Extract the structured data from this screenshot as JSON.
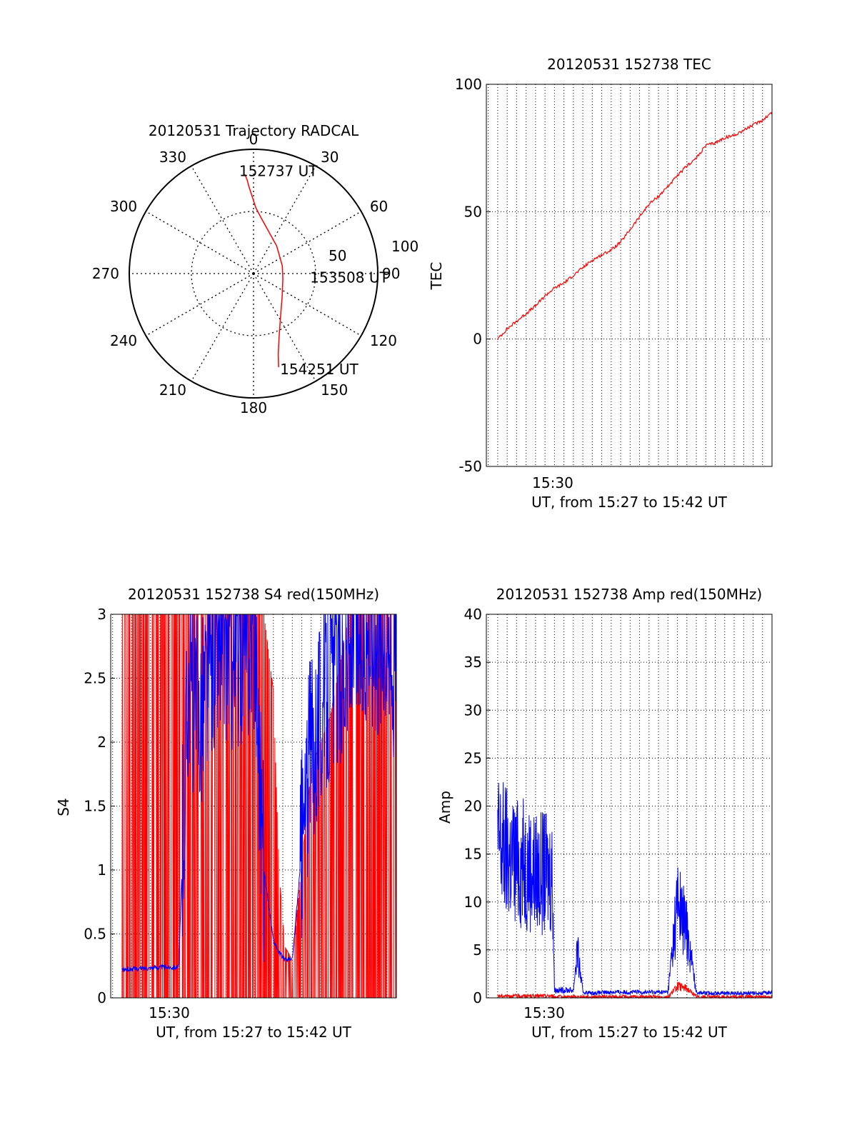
{
  "colors": {
    "red": "#ff0000",
    "blue": "#0000ff",
    "black": "#000000"
  },
  "chart_data": [
    {
      "id": "polar",
      "type": "scatter",
      "title": "20120531 Trajectory RADCAL",
      "angle_labels": [
        "0",
        "30",
        "60",
        "90",
        "120",
        "150",
        "180",
        "210",
        "240",
        "270",
        "300",
        "330"
      ],
      "radius_labels": [
        "50",
        "100"
      ],
      "rmax": 100,
      "trajectory": {
        "azimuth": [
          -5,
          -4,
          -3,
          -1,
          2,
          8,
          18,
          40,
          75,
          100,
          130,
          148,
          158,
          163,
          165
        ],
        "zenith": [
          80,
          76,
          70,
          62,
          53,
          45,
          37,
          29,
          24,
          24,
          30,
          41,
          55,
          68,
          78
        ]
      },
      "annotations": [
        {
          "text": "152737 UT",
          "azimuth": -5,
          "zenith": 80
        },
        {
          "text": "153508 UT",
          "azimuth": 100,
          "zenith": 24
        },
        {
          "text": "154251 UT",
          "azimuth": 165,
          "zenith": 78
        }
      ],
      "grid": true
    },
    {
      "id": "tec",
      "type": "line",
      "title": "20120531 152738 TEC",
      "ylabel": "TEC",
      "xlabel": "UT, from 15:27 to 15:42 UT",
      "xtick": "15:30",
      "x_range_min": [
        27.4,
        42.5
      ],
      "xtick_min": 30.0,
      "ylim": [
        -50,
        100
      ],
      "yticks": [
        "-50",
        "0",
        "50",
        "100"
      ],
      "ytick_values": [
        -50,
        0,
        50,
        100
      ],
      "series": [
        {
          "x_min": [
            28.0,
            28.5,
            29.0,
            29.5,
            30.0,
            30.5,
            31.0,
            31.5,
            32.0,
            32.5,
            33.0,
            33.5,
            34.0,
            34.5,
            35.0,
            35.5,
            36.0,
            36.5,
            37.0,
            37.5,
            38.0,
            38.5,
            39.0,
            39.5,
            40.0,
            40.5,
            41.0,
            41.5,
            42.0,
            42.5
          ],
          "values": [
            0,
            4,
            7,
            10,
            13,
            17,
            20,
            22,
            25,
            28,
            31,
            33,
            35,
            38,
            43,
            48,
            53,
            56,
            60,
            64,
            68,
            71,
            76,
            77,
            79,
            80,
            82,
            84,
            86,
            89
          ]
        }
      ],
      "grid": true
    },
    {
      "id": "s4",
      "type": "line",
      "title": "20120531 152738 S4 red(150MHz)",
      "ylabel": "S4",
      "xlabel": "UT, from 15:27 to 15:42 UT",
      "xtick": "15:30",
      "x_range_min": [
        27.4,
        42.5
      ],
      "xtick_min": 30.0,
      "ylim": [
        0,
        3
      ],
      "yticks": [
        "0",
        "0.5",
        "1",
        "1.5",
        "2",
        "2.5",
        "3"
      ],
      "ytick_values": [
        0,
        0.5,
        1,
        1.5,
        2,
        2.5,
        3
      ],
      "series": [
        {
          "color": "red",
          "x_min": [
            28.0,
            29.0,
            30.0,
            31.0,
            32.0,
            33.0,
            34.0,
            35.0,
            35.5,
            36.0,
            36.3,
            36.6,
            37.0,
            38.0,
            39.0,
            40.0,
            41.0,
            42.0,
            42.5
          ],
          "values": [
            3,
            3,
            3,
            3,
            3,
            3,
            3,
            3,
            3,
            2.4,
            1.0,
            0.4,
            0.3,
            1.8,
            2.2,
            3,
            3,
            3,
            3
          ]
        },
        {
          "color": "blue",
          "x_min": [
            28.0,
            29.0,
            30.0,
            31.0,
            31.5,
            32.0,
            33.0,
            34.0,
            35.0,
            35.5,
            36.0,
            36.3,
            36.6,
            37.0,
            38.0,
            39.0,
            40.0,
            41.0,
            42.0,
            42.5
          ],
          "values": [
            0.22,
            0.23,
            0.24,
            0.24,
            2.6,
            2.2,
            2.8,
            2.7,
            2.9,
            1.0,
            0.45,
            0.35,
            0.3,
            0.3,
            2.0,
            2.5,
            2.7,
            2.9,
            2.8,
            2.6
          ]
        }
      ],
      "grid": true
    },
    {
      "id": "amp",
      "type": "line",
      "title": "20120531 152738 Amp red(150MHz)",
      "ylabel": "Amp",
      "xlabel": "UT, from 15:27 to 15:42 UT",
      "xtick": "15:30",
      "x_range_min": [
        27.4,
        42.5
      ],
      "xtick_min": 30.0,
      "ylim": [
        0,
        40
      ],
      "yticks": [
        "0",
        "5",
        "10",
        "15",
        "20",
        "25",
        "30",
        "35",
        "40"
      ],
      "ytick_values": [
        0,
        5,
        10,
        15,
        20,
        25,
        30,
        35,
        40
      ],
      "series": [
        {
          "color": "blue",
          "x_min": [
            28.0,
            28.5,
            29.0,
            29.5,
            30.0,
            30.5,
            30.9,
            31.0,
            32.0,
            32.2,
            32.5,
            33.0,
            34.0,
            35.0,
            36.0,
            37.0,
            37.5,
            38.0,
            38.5,
            39.0,
            40.0,
            41.0,
            42.0,
            42.5
          ],
          "values": [
            16,
            15,
            14,
            14,
            13,
            13,
            13,
            0.8,
            0.8,
            5,
            0.6,
            0.5,
            0.6,
            0.6,
            0.6,
            0.6,
            10,
            7,
            0.6,
            0.5,
            0.5,
            0.5,
            0.5,
            0.6
          ]
        },
        {
          "color": "red",
          "x_min": [
            28.0,
            29.0,
            30.0,
            30.9,
            31.0,
            32.0,
            32.5,
            33.0,
            35.0,
            37.0,
            37.5,
            38.0,
            38.5,
            39.0,
            42.5
          ],
          "values": [
            0.2,
            0.2,
            0.2,
            0.2,
            0.1,
            0.1,
            0.1,
            0.1,
            0.1,
            0.1,
            1.2,
            1.0,
            0.1,
            0.1,
            0.1
          ]
        }
      ],
      "grid": true
    }
  ]
}
